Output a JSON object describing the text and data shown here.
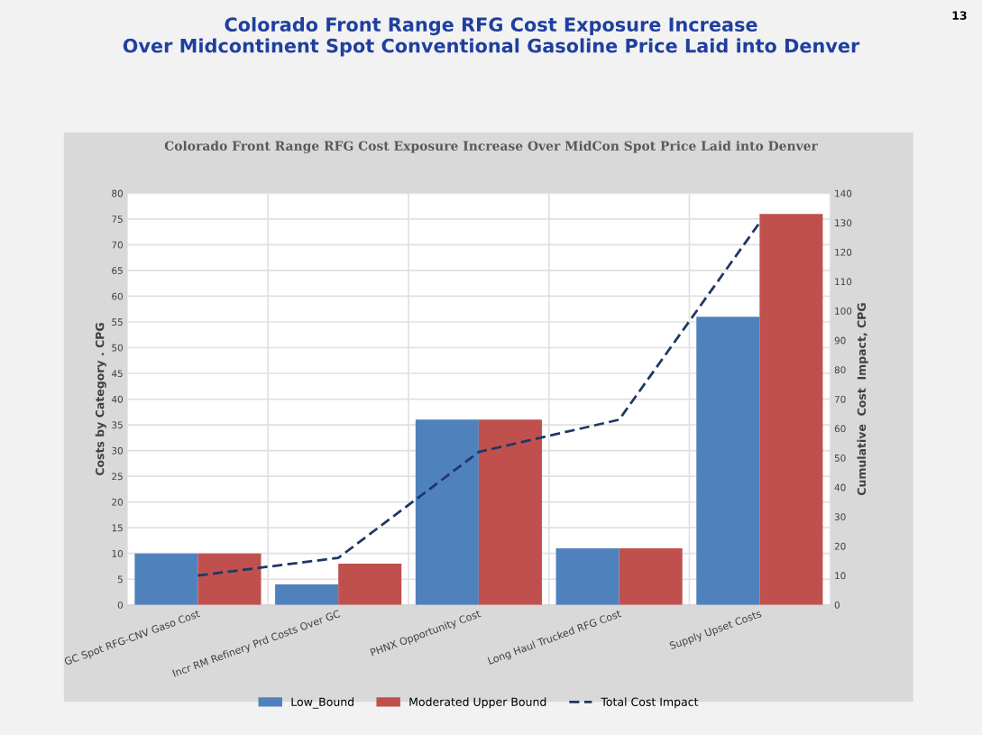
{
  "chart_data": {
    "type": "bar",
    "title": "Colorado Front Range RFG Cost Exposure Increase\nOver Midcontinent Spot Conventional Gasoline Price Laid into Denver",
    "subtitle": "Colorado Front Range RFG Cost Exposure Increase Over MidCon Spot Price Laid into Denver",
    "ylabel": "Costs by Category . CPG",
    "y2label": "Cumulative  Cost  Impact, CPG",
    "annotations": [
      "13"
    ],
    "categories": [
      "GC Spot RFG-CNV Gaso Cost",
      "Incr RM Refinery Prd Costs Over GC",
      "PHNX Opportunity Cost",
      "Long Haul Trucked RFG Cost",
      "Supply Upset Costs"
    ],
    "series": [
      {
        "name": "Low_Bound",
        "color": "#4f81bd",
        "values": [
          10,
          4,
          36,
          11,
          56
        ]
      },
      {
        "name": "Moderated Upper Bound",
        "color": "#c0504d",
        "values": [
          10,
          8,
          36,
          11,
          76
        ]
      },
      {
        "name": "Total Cost Impact",
        "type": "line",
        "axis": "y2",
        "color": "#1f3864",
        "line_style": "dashed",
        "marker": "none",
        "values": [
          10,
          16,
          52,
          63,
          130
        ]
      }
    ],
    "ylim": [
      0,
      80
    ],
    "yticks": [
      0,
      5,
      10,
      15,
      20,
      25,
      30,
      35,
      40,
      45,
      50,
      55,
      60,
      65,
      70,
      75,
      80
    ],
    "y2lim": [
      0,
      140
    ],
    "y2ticks": [
      0,
      10,
      20,
      30,
      40,
      50,
      60,
      70,
      80,
      90,
      100,
      110,
      120,
      130,
      140
    ],
    "grid": true,
    "legend": "bottom"
  }
}
